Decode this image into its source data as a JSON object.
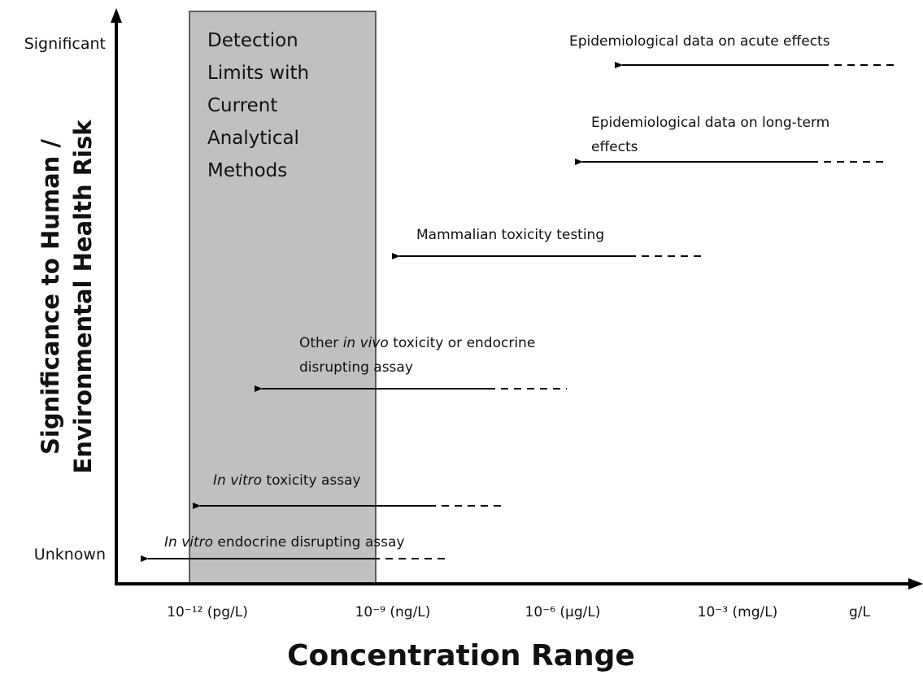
{
  "y_axis": {
    "top_label": "Significant",
    "bottom_label": "Unknown",
    "title_lines": [
      "Significance to Human  /",
      "Environmental Health Risk"
    ]
  },
  "x_axis": {
    "tick_labels": [
      "10⁻¹² (pg/L)",
      "10⁻⁹ (ng/L)",
      "10⁻⁶ (µg/L)",
      "10⁻³ (mg/L)",
      "g/L"
    ],
    "title": "Concentration Range"
  },
  "box": {
    "lines": [
      "Detection",
      "Limits with",
      "Current",
      "Analytical",
      "Methods"
    ]
  },
  "arrows": [
    {
      "lines": [
        [
          {
            "text": "Epidemiological data on acute effects"
          }
        ]
      ]
    },
    {
      "lines": [
        [
          {
            "text": "Epidemiological data on long-term"
          }
        ],
        [
          {
            "text": "effects"
          }
        ]
      ]
    },
    {
      "lines": [
        [
          {
            "text": "Mammalian toxicity testing"
          }
        ]
      ]
    },
    {
      "lines": [
        [
          {
            "text": "Other "
          },
          {
            "text": "in vivo",
            "italic": true
          },
          {
            "text": " toxicity or endocrine"
          }
        ],
        [
          {
            "text": "disrupting assay"
          }
        ]
      ]
    },
    {
      "lines": [
        [
          {
            "text": "In vitro",
            "italic": true
          },
          {
            "text": " toxicity assay"
          }
        ]
      ]
    },
    {
      "lines": [
        [
          {
            "text": "In vitro",
            "italic": true
          },
          {
            "text": " endocrine disrupting assay"
          }
        ]
      ]
    }
  ]
}
